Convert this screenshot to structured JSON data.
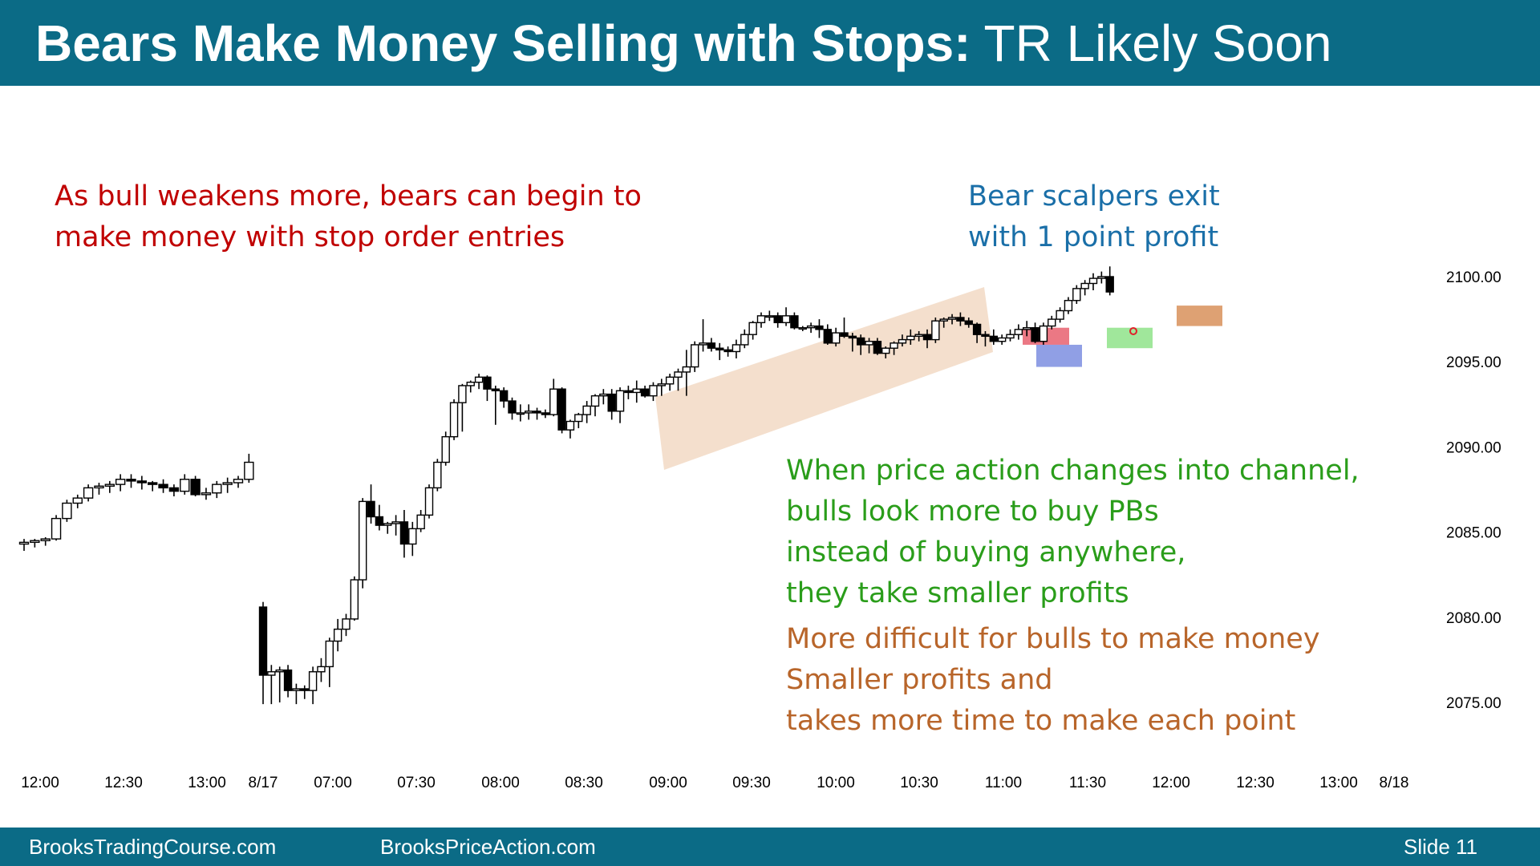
{
  "slide": {
    "title_bold": "Bears Make Money Selling with Stops:",
    "title_light": "TR Likely Soon",
    "footer_left": "BrooksTradingCourse.com",
    "footer_mid": "BrooksPriceAction.com",
    "footer_right": "Slide  11"
  },
  "annotations": {
    "bull_weakens": [
      "As bull weakens more, bears can begin to",
      "make money with stop order entries"
    ],
    "bear_scalpers": [
      "Bear scalpers exit",
      "with 1 point profit"
    ],
    "channel": [
      "When price action changes into channel,",
      "bulls look more to buy PBs",
      "instead of buying anywhere,",
      "they take smaller profits"
    ],
    "difficult": [
      "More difficult for bulls to make money",
      "Smaller profits and",
      "takes more time to make each point"
    ]
  },
  "colors": {
    "header": "#0b6b86",
    "red_text": "#c00000",
    "blue_text": "#1a6fa8",
    "green_text": "#2a9d1a",
    "brown_text": "#b8652a",
    "channel_band": "#f2d9c4",
    "red_box": "#e8606e",
    "blue_box": "#7d8ee0",
    "green_box": "#8fe38a",
    "brown_box": "#d8915a"
  },
  "chart_data": {
    "type": "candlestick",
    "y_axis": {
      "side": "right",
      "ticks": [
        2100,
        2095,
        2090,
        2085,
        2080,
        2075
      ],
      "tick_labels": [
        "2100.00",
        "2095.00",
        "2090.00",
        "2085.00",
        "2080.00",
        "2075.00"
      ]
    },
    "x_axis": {
      "tick_labels": [
        "12:00",
        "12:30",
        "13:00",
        "8/17",
        "07:00",
        "07:30",
        "08:00",
        "08:30",
        "09:00",
        "09:30",
        "10:00",
        "10:30",
        "11:00",
        "11:30",
        "12:00",
        "12:30",
        "13:00",
        "8/18"
      ]
    },
    "sessions": [
      {
        "label": "8/16 afternoon",
        "candles": [
          [
            2084.3,
            2084.6,
            2083.9,
            2084.4
          ],
          [
            2084.4,
            2084.6,
            2084.1,
            2084.5
          ],
          [
            2084.5,
            2084.7,
            2084.2,
            2084.6
          ],
          [
            2084.6,
            2086.0,
            2084.5,
            2085.8
          ],
          [
            2085.8,
            2086.9,
            2085.6,
            2086.7
          ],
          [
            2086.7,
            2087.2,
            2086.4,
            2087.0
          ],
          [
            2087.0,
            2087.8,
            2086.8,
            2087.6
          ],
          [
            2087.6,
            2087.9,
            2087.2,
            2087.7
          ],
          [
            2087.7,
            2088.0,
            2087.3,
            2087.8
          ],
          [
            2087.8,
            2088.4,
            2087.4,
            2088.1
          ],
          [
            2088.1,
            2088.4,
            2087.6,
            2088.0
          ],
          [
            2088.0,
            2088.3,
            2087.5,
            2087.9
          ],
          [
            2087.9,
            2088.0,
            2087.4,
            2087.8
          ],
          [
            2087.8,
            2088.1,
            2087.3,
            2087.6
          ],
          [
            2087.6,
            2087.8,
            2087.1,
            2087.4
          ],
          [
            2087.4,
            2088.4,
            2087.2,
            2088.1
          ],
          [
            2088.1,
            2088.3,
            2087.1,
            2087.2
          ],
          [
            2087.2,
            2087.6,
            2086.9,
            2087.3
          ],
          [
            2087.3,
            2088.0,
            2087.0,
            2087.8
          ],
          [
            2087.8,
            2088.2,
            2087.3,
            2087.9
          ],
          [
            2087.9,
            2088.3,
            2087.6,
            2088.1
          ],
          [
            2088.1,
            2089.6,
            2087.9,
            2089.1
          ]
        ]
      },
      {
        "label": "8/17",
        "candles": [
          [
            2080.6,
            2080.9,
            2074.9,
            2076.6
          ],
          [
            2076.6,
            2077.2,
            2074.9,
            2076.8
          ],
          [
            2076.8,
            2077.1,
            2075.0,
            2076.9
          ],
          [
            2076.9,
            2077.2,
            2075.3,
            2075.7
          ],
          [
            2075.7,
            2076.1,
            2074.9,
            2075.8
          ],
          [
            2075.8,
            2076.0,
            2075.2,
            2075.7
          ],
          [
            2075.7,
            2077.1,
            2074.9,
            2076.8
          ],
          [
            2076.8,
            2077.6,
            2076.2,
            2077.1
          ],
          [
            2077.1,
            2078.8,
            2075.9,
            2078.6
          ],
          [
            2078.6,
            2079.9,
            2078.0,
            2079.3
          ],
          [
            2079.3,
            2080.2,
            2078.9,
            2079.9
          ],
          [
            2079.9,
            2082.4,
            2079.8,
            2082.2
          ],
          [
            2082.2,
            2087.0,
            2081.7,
            2086.8
          ],
          [
            2086.8,
            2087.8,
            2085.5,
            2085.9
          ],
          [
            2085.9,
            2086.6,
            2085.1,
            2085.4
          ],
          [
            2085.4,
            2085.6,
            2084.9,
            2085.5
          ],
          [
            2085.5,
            2086.0,
            2084.8,
            2085.6
          ],
          [
            2085.6,
            2086.3,
            2083.5,
            2084.3
          ],
          [
            2084.3,
            2085.6,
            2083.6,
            2085.2
          ],
          [
            2085.2,
            2086.3,
            2085.0,
            2086.0
          ],
          [
            2086.0,
            2087.8,
            2085.8,
            2087.6
          ],
          [
            2087.6,
            2089.3,
            2087.4,
            2089.1
          ],
          [
            2089.1,
            2090.9,
            2088.9,
            2090.6
          ],
          [
            2090.6,
            2092.8,
            2090.4,
            2092.6
          ],
          [
            2092.6,
            2093.7,
            2090.9,
            2093.6
          ],
          [
            2093.6,
            2093.9,
            2093.2,
            2093.8
          ],
          [
            2093.8,
            2094.3,
            2093.4,
            2094.1
          ],
          [
            2094.1,
            2094.2,
            2092.7,
            2093.4
          ],
          [
            2093.4,
            2093.6,
            2091.3,
            2093.3
          ],
          [
            2093.3,
            2093.5,
            2092.3,
            2092.7
          ],
          [
            2092.7,
            2092.9,
            2091.6,
            2092.0
          ],
          [
            2092.0,
            2092.5,
            2091.5,
            2092.0
          ],
          [
            2092.0,
            2092.5,
            2091.6,
            2092.1
          ],
          [
            2092.1,
            2092.3,
            2091.6,
            2092.0
          ],
          [
            2092.0,
            2092.2,
            2091.7,
            2091.9
          ],
          [
            2091.9,
            2094.0,
            2091.8,
            2093.4
          ],
          [
            2093.4,
            2093.5,
            2090.8,
            2091.0
          ],
          [
            2091.0,
            2091.6,
            2090.5,
            2091.5
          ],
          [
            2091.5,
            2092.0,
            2091.1,
            2091.9
          ],
          [
            2091.9,
            2092.7,
            2091.4,
            2092.4
          ],
          [
            2092.4,
            2093.1,
            2091.8,
            2093.0
          ],
          [
            2093.0,
            2093.4,
            2092.5,
            2093.1
          ],
          [
            2093.1,
            2093.4,
            2091.6,
            2092.1
          ],
          [
            2092.1,
            2093.5,
            2091.4,
            2093.3
          ],
          [
            2093.3,
            2093.6,
            2092.8,
            2093.2
          ],
          [
            2093.2,
            2093.9,
            2092.6,
            2093.4
          ],
          [
            2093.4,
            2093.6,
            2092.9,
            2093.0
          ],
          [
            2093.0,
            2093.8,
            2092.7,
            2093.6
          ],
          [
            2093.6,
            2094.0,
            2093.0,
            2093.7
          ],
          [
            2093.7,
            2094.3,
            2093.3,
            2094.1
          ],
          [
            2094.1,
            2094.6,
            2093.3,
            2094.4
          ],
          [
            2094.4,
            2095.7,
            2093.0,
            2094.7
          ],
          [
            2094.7,
            2096.2,
            2094.4,
            2096.0
          ],
          [
            2096.0,
            2097.5,
            2095.6,
            2096.1
          ],
          [
            2096.1,
            2096.4,
            2095.6,
            2095.8
          ],
          [
            2095.8,
            2096.1,
            2095.1,
            2095.7
          ],
          [
            2095.7,
            2095.9,
            2095.3,
            2095.6
          ],
          [
            2095.6,
            2096.3,
            2095.2,
            2096.0
          ],
          [
            2096.0,
            2096.9,
            2095.8,
            2096.6
          ],
          [
            2096.6,
            2097.4,
            2096.3,
            2097.3
          ],
          [
            2097.3,
            2097.9,
            2097.0,
            2097.7
          ],
          [
            2097.7,
            2098.0,
            2097.4,
            2097.7
          ],
          [
            2097.7,
            2097.9,
            2097.0,
            2097.3
          ],
          [
            2097.3,
            2098.2,
            2097.1,
            2097.7
          ],
          [
            2097.7,
            2097.9,
            2096.9,
            2097.0
          ],
          [
            2097.0,
            2097.1,
            2096.8,
            2097.0
          ],
          [
            2097.0,
            2097.3,
            2096.7,
            2097.1
          ],
          [
            2097.1,
            2097.5,
            2096.4,
            2096.9
          ],
          [
            2096.9,
            2097.2,
            2096.0,
            2096.1
          ],
          [
            2096.1,
            2097.0,
            2095.9,
            2096.7
          ],
          [
            2096.7,
            2097.6,
            2096.4,
            2096.5
          ],
          [
            2096.5,
            2096.7,
            2095.6,
            2096.4
          ],
          [
            2096.4,
            2096.6,
            2095.4,
            2096.0
          ],
          [
            2096.0,
            2096.4,
            2095.5,
            2096.2
          ],
          [
            2096.2,
            2096.4,
            2095.4,
            2095.5
          ],
          [
            2095.5,
            2095.9,
            2095.2,
            2095.8
          ],
          [
            2095.8,
            2096.2,
            2095.4,
            2096.1
          ],
          [
            2096.1,
            2096.6,
            2095.9,
            2096.3
          ],
          [
            2096.3,
            2096.9,
            2096.0,
            2096.5
          ],
          [
            2096.5,
            2096.8,
            2096.2,
            2096.6
          ],
          [
            2096.6,
            2096.9,
            2095.8,
            2096.3
          ],
          [
            2096.3,
            2097.6,
            2096.1,
            2097.4
          ],
          [
            2097.4,
            2097.6,
            2097.0,
            2097.5
          ],
          [
            2097.5,
            2097.8,
            2097.2,
            2097.6
          ],
          [
            2097.6,
            2097.9,
            2097.1,
            2097.4
          ],
          [
            2097.4,
            2097.6,
            2097.0,
            2097.2
          ],
          [
            2097.2,
            2097.3,
            2096.1,
            2096.6
          ],
          [
            2096.6,
            2096.8,
            2095.9,
            2096.5
          ],
          [
            2096.5,
            2096.9,
            2096.0,
            2096.2
          ],
          [
            2096.2,
            2096.6,
            2096.0,
            2096.4
          ],
          [
            2096.4,
            2096.9,
            2096.2,
            2096.6
          ],
          [
            2096.6,
            2097.2,
            2096.3,
            2096.9
          ],
          [
            2096.9,
            2097.4,
            2096.5,
            2097.0
          ],
          [
            2097.0,
            2097.3,
            2096.1,
            2096.2
          ],
          [
            2096.2,
            2097.3,
            2096.0,
            2097.1
          ],
          [
            2097.1,
            2097.7,
            2096.9,
            2097.5
          ],
          [
            2097.5,
            2098.2,
            2097.3,
            2098.0
          ],
          [
            2098.0,
            2098.8,
            2097.8,
            2098.6
          ],
          [
            2098.6,
            2099.5,
            2098.4,
            2099.3
          ],
          [
            2099.3,
            2099.8,
            2098.9,
            2099.6
          ],
          [
            2099.6,
            2100.2,
            2099.2,
            2099.9
          ],
          [
            2099.9,
            2100.3,
            2099.6,
            2100.0
          ],
          [
            2100.0,
            2100.6,
            2098.9,
            2099.1
          ]
        ]
      }
    ],
    "highlights": [
      {
        "label": "channel band",
        "color": "channel_band",
        "from_time": "09:00",
        "to_time": "11:00"
      },
      {
        "label": "red box",
        "color": "red_box",
        "price_range": [
          2096.0,
          2097.0
        ]
      },
      {
        "label": "blue box",
        "color": "blue_box",
        "price_range": [
          2094.7,
          2096.0
        ]
      },
      {
        "label": "green box",
        "color": "green_box",
        "price_range": [
          2095.8,
          2097.0
        ]
      },
      {
        "label": "brown box",
        "color": "brown_box",
        "price_range": [
          2097.1,
          2098.3
        ]
      }
    ]
  }
}
